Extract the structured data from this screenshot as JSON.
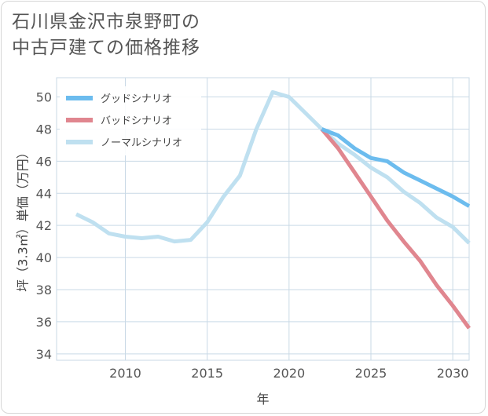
{
  "title": {
    "line1": "石川県金沢市泉野町の",
    "line2": "中古戸建ての価格推移"
  },
  "chart_data": {
    "type": "line",
    "xlabel": "年",
    "ylabel": "坪（3.3㎡）単価（万円）",
    "xlim": [
      2005.8,
      2031
    ],
    "ylim": [
      33.6,
      51.2
    ],
    "xticks": [
      2010,
      2015,
      2020,
      2025,
      2030
    ],
    "yticks": [
      34,
      36,
      38,
      40,
      42,
      44,
      46,
      48,
      50
    ],
    "grid": true,
    "legend_position": "top-left",
    "series": [
      {
        "name": "グッドシナリオ",
        "color": "#6cbcee",
        "x": [
          2022,
          2023,
          2024,
          2025,
          2026,
          2027,
          2028,
          2029,
          2030,
          2031
        ],
        "y": [
          48.0,
          47.6,
          46.8,
          46.2,
          46.0,
          45.3,
          44.8,
          44.3,
          43.8,
          43.2
        ]
      },
      {
        "name": "バッドシナリオ",
        "color": "#e0868f",
        "x": [
          2022,
          2023,
          2024,
          2025,
          2026,
          2027,
          2028,
          2029,
          2030,
          2031
        ],
        "y": [
          48.0,
          46.8,
          45.3,
          43.8,
          42.3,
          41.0,
          39.8,
          38.3,
          37.0,
          35.6
        ]
      },
      {
        "name": "ノーマルシナリオ",
        "color": "#bfe0f0",
        "x": [
          2007,
          2008,
          2009,
          2010,
          2011,
          2012,
          2013,
          2014,
          2015,
          2016,
          2017,
          2018,
          2019,
          2020,
          2021,
          2022,
          2023,
          2024,
          2025,
          2026,
          2027,
          2028,
          2029,
          2030,
          2031
        ],
        "y": [
          42.7,
          42.2,
          41.5,
          41.3,
          41.2,
          41.3,
          41.0,
          41.1,
          42.2,
          43.8,
          45.1,
          48.0,
          50.3,
          50.0,
          49.0,
          48.0,
          47.1,
          46.4,
          45.6,
          45.0,
          44.1,
          43.4,
          42.5,
          41.9,
          40.9
        ]
      }
    ]
  }
}
